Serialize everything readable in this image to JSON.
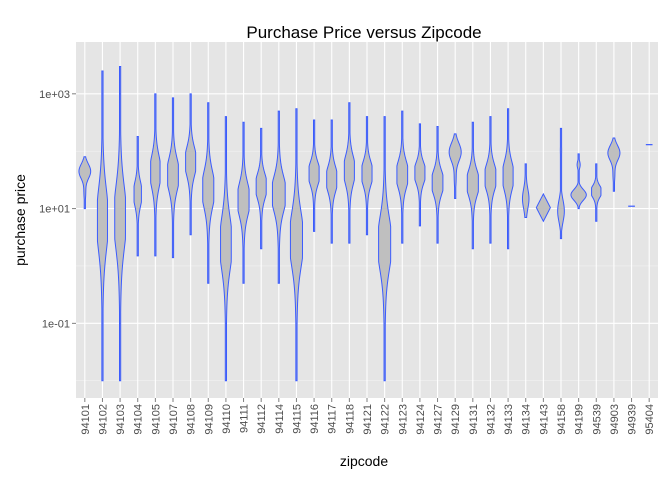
{
  "chart_data": {
    "type": "violin",
    "title": "Purchase Price versus Zipcode",
    "xlabel": "zipcode",
    "ylabel": "purchase price",
    "y_scale": "log10",
    "y_range": [
      0.005,
      8000
    ],
    "y_ticks": [
      {
        "value": 0.1,
        "label": "1e-01"
      },
      {
        "value": 10,
        "label": "1e+01"
      },
      {
        "value": 1000,
        "label": "1e+03"
      }
    ],
    "grid": true,
    "background": "#e5e5e5",
    "grid_color": "#ffffff",
    "violin_fill": "#bfbfbf",
    "violin_stroke": "#3a5bff",
    "categories": [
      "94101",
      "94102",
      "94103",
      "94104",
      "94105",
      "94107",
      "94108",
      "94109",
      "94110",
      "94111",
      "94112",
      "94114",
      "94115",
      "94116",
      "94117",
      "94118",
      "94121",
      "94122",
      "94123",
      "94124",
      "94127",
      "94129",
      "94131",
      "94132",
      "94133",
      "94134",
      "94143",
      "94158",
      "94199",
      "94539",
      "94903",
      "94939",
      "95404"
    ],
    "violins": [
      {
        "zip": "94101",
        "min": 10,
        "max": 80,
        "width": 0.35,
        "shape": "topheavy"
      },
      {
        "zip": "94102",
        "min": 0.01,
        "max": 2500,
        "width": 0.3,
        "shape": "normal"
      },
      {
        "zip": "94103",
        "min": 0.01,
        "max": 3000,
        "width": 0.32,
        "shape": "normal"
      },
      {
        "zip": "94104",
        "min": 1.5,
        "max": 180,
        "width": 0.22,
        "shape": "normal"
      },
      {
        "zip": "94105",
        "min": 1.5,
        "max": 1000,
        "width": 0.28,
        "shape": "normal"
      },
      {
        "zip": "94107",
        "min": 1.4,
        "max": 850,
        "width": 0.32,
        "shape": "normal"
      },
      {
        "zip": "94108",
        "min": 3.5,
        "max": 1000,
        "width": 0.3,
        "shape": "normal"
      },
      {
        "zip": "94109",
        "min": 0.5,
        "max": 700,
        "width": 0.33,
        "shape": "normal"
      },
      {
        "zip": "94110",
        "min": 0.01,
        "max": 400,
        "width": 0.32,
        "shape": "normal"
      },
      {
        "zip": "94111",
        "min": 0.5,
        "max": 320,
        "width": 0.33,
        "shape": "normal"
      },
      {
        "zip": "94112",
        "min": 2,
        "max": 250,
        "width": 0.3,
        "shape": "normal"
      },
      {
        "zip": "94114",
        "min": 0.5,
        "max": 500,
        "width": 0.38,
        "shape": "normal"
      },
      {
        "zip": "94115",
        "min": 0.01,
        "max": 550,
        "width": 0.36,
        "shape": "normal"
      },
      {
        "zip": "94116",
        "min": 4,
        "max": 350,
        "width": 0.3,
        "shape": "normal"
      },
      {
        "zip": "94117",
        "min": 2.5,
        "max": 350,
        "width": 0.3,
        "shape": "normal"
      },
      {
        "zip": "94118",
        "min": 2.5,
        "max": 700,
        "width": 0.3,
        "shape": "normal"
      },
      {
        "zip": "94121",
        "min": 3.5,
        "max": 400,
        "width": 0.3,
        "shape": "normal"
      },
      {
        "zip": "94122",
        "min": 0.01,
        "max": 400,
        "width": 0.36,
        "shape": "normal"
      },
      {
        "zip": "94123",
        "min": 2.5,
        "max": 500,
        "width": 0.32,
        "shape": "normal"
      },
      {
        "zip": "94124",
        "min": 5,
        "max": 300,
        "width": 0.3,
        "shape": "normal"
      },
      {
        "zip": "94127",
        "min": 2.5,
        "max": 270,
        "width": 0.32,
        "shape": "normal"
      },
      {
        "zip": "94129",
        "min": 15,
        "max": 200,
        "width": 0.36,
        "shape": "topheavy"
      },
      {
        "zip": "94131",
        "min": 2,
        "max": 320,
        "width": 0.33,
        "shape": "normal"
      },
      {
        "zip": "94132",
        "min": 2.5,
        "max": 400,
        "width": 0.32,
        "shape": "normal"
      },
      {
        "zip": "94133",
        "min": 2,
        "max": 550,
        "width": 0.3,
        "shape": "normal"
      },
      {
        "zip": "94134",
        "min": 7,
        "max": 60,
        "width": 0.3,
        "shape": "thin"
      },
      {
        "zip": "94143",
        "min": 6,
        "max": 18,
        "width": 0.42,
        "shape": "diamond"
      },
      {
        "zip": "94158",
        "min": 3,
        "max": 250,
        "width": 0.2,
        "shape": "bottomheavy"
      },
      {
        "zip": "94199",
        "min": 10,
        "max": 90,
        "width": 0.46,
        "shape": "bottomheavy"
      },
      {
        "zip": "94539",
        "min": 6,
        "max": 60,
        "width": 0.28,
        "shape": "normal"
      },
      {
        "zip": "94903",
        "min": 20,
        "max": 170,
        "width": 0.36,
        "shape": "topheavy"
      },
      {
        "zip": "94939",
        "min": 11,
        "max": 11,
        "width": 0.4,
        "shape": "line"
      },
      {
        "zip": "95404",
        "min": 130,
        "max": 130,
        "width": 0.4,
        "shape": "line"
      }
    ]
  }
}
